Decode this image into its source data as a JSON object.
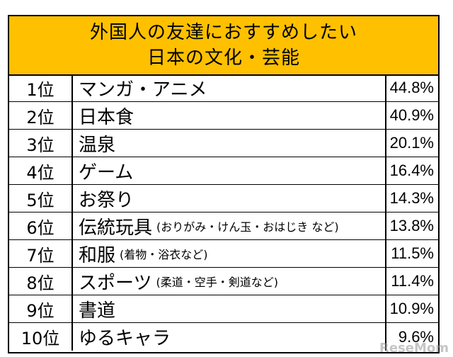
{
  "title": {
    "line1": "外国人の友達におすすめしたい",
    "line2": "日本の文化・芸能"
  },
  "watermark": "ReseMom",
  "colors": {
    "header_bg": "#ffc000",
    "border": "#000000"
  },
  "chart_data": {
    "type": "table",
    "title": "外国人の友達におすすめしたい 日本の文化・芸能",
    "rows": [
      {
        "rank": "1位",
        "item": "マンガ・アニメ",
        "note": "",
        "value": "44.8%"
      },
      {
        "rank": "2位",
        "item": "日本食",
        "note": "",
        "value": "40.9%"
      },
      {
        "rank": "3位",
        "item": "温泉",
        "note": "",
        "value": "20.1%"
      },
      {
        "rank": "4位",
        "item": "ゲーム",
        "note": "",
        "value": "16.4%"
      },
      {
        "rank": "5位",
        "item": "お祭り",
        "note": "",
        "value": "14.3%"
      },
      {
        "rank": "6位",
        "item": "伝統玩具",
        "note": "(おりがみ・けん玉・おはじき など)",
        "value": "13.8%"
      },
      {
        "rank": "7位",
        "item": "和服",
        "note": "(着物・浴衣など)",
        "value": "11.5%"
      },
      {
        "rank": "8位",
        "item": "スポーツ",
        "note": "(柔道・空手・剣道など)",
        "value": "11.4%"
      },
      {
        "rank": "9位",
        "item": "書道",
        "note": "",
        "value": "10.9%"
      },
      {
        "rank": "10位",
        "item": "ゆるキャラ",
        "note": "",
        "value": "9.6%"
      }
    ]
  }
}
